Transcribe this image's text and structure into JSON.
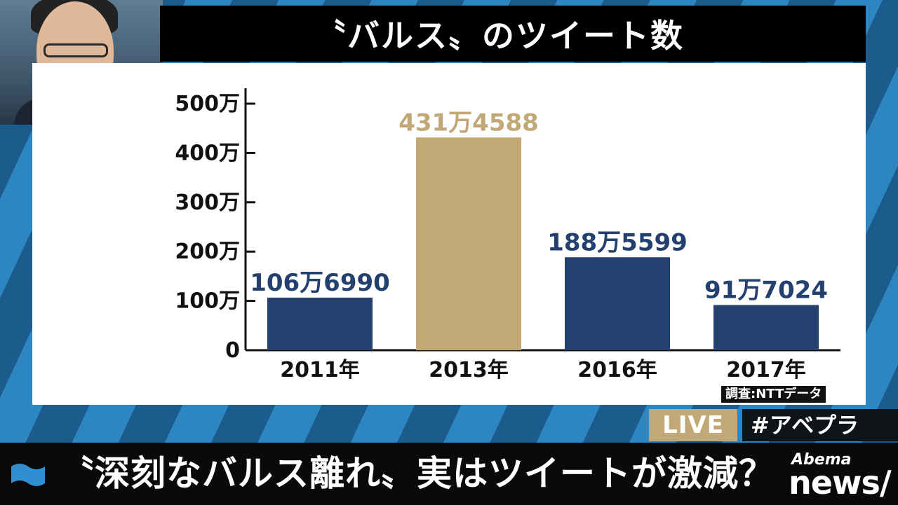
{
  "title": "〝バルス〟のツイート数",
  "source": "調査:NTTデータ",
  "live": "LIVE",
  "hashtag": "#アベプラ",
  "headline": "〝深刻なバルス離れ〟実はツイートが激減？",
  "logo": {
    "top": "Abema",
    "bottom": "news/"
  },
  "colors": {
    "bar_default": "#23406e",
    "bar_highlight": "#c2a877",
    "title_bg": "#000000"
  },
  "chart_data": {
    "type": "bar",
    "categories": [
      "2011年",
      "2013年",
      "2016年",
      "2017年"
    ],
    "values": [
      1066990,
      4314588,
      1885599,
      917024
    ],
    "data_labels": [
      "106万6990",
      "431万4588",
      "188万5599",
      "91万7024"
    ],
    "highlight_index": 1,
    "y_ticks": [
      0,
      1000000,
      2000000,
      3000000,
      4000000,
      5000000
    ],
    "y_tick_labels": [
      "0",
      "100万",
      "200万",
      "300万",
      "400万",
      "500万"
    ],
    "ylim": [
      0,
      5000000
    ],
    "grid": false
  }
}
